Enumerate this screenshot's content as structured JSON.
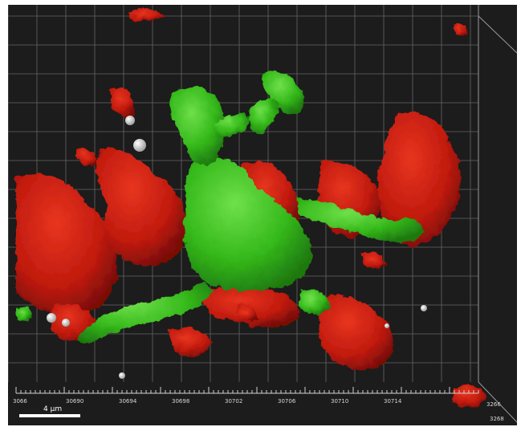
{
  "viewer": {
    "scale_bar_label": "4 µm",
    "x_axis_ticks": [
      "3066",
      "30690",
      "30694",
      "30698",
      "30702",
      "30706",
      "30710",
      "30714"
    ],
    "z_axis_ticks": [
      "3266",
      "3268"
    ],
    "colors": {
      "background": "#1c1c1c",
      "grid": "#8a8a8a",
      "red_channel": "#c81a10",
      "green_channel": "#3ec91e",
      "gray_particles": "#d0d0d0"
    }
  }
}
